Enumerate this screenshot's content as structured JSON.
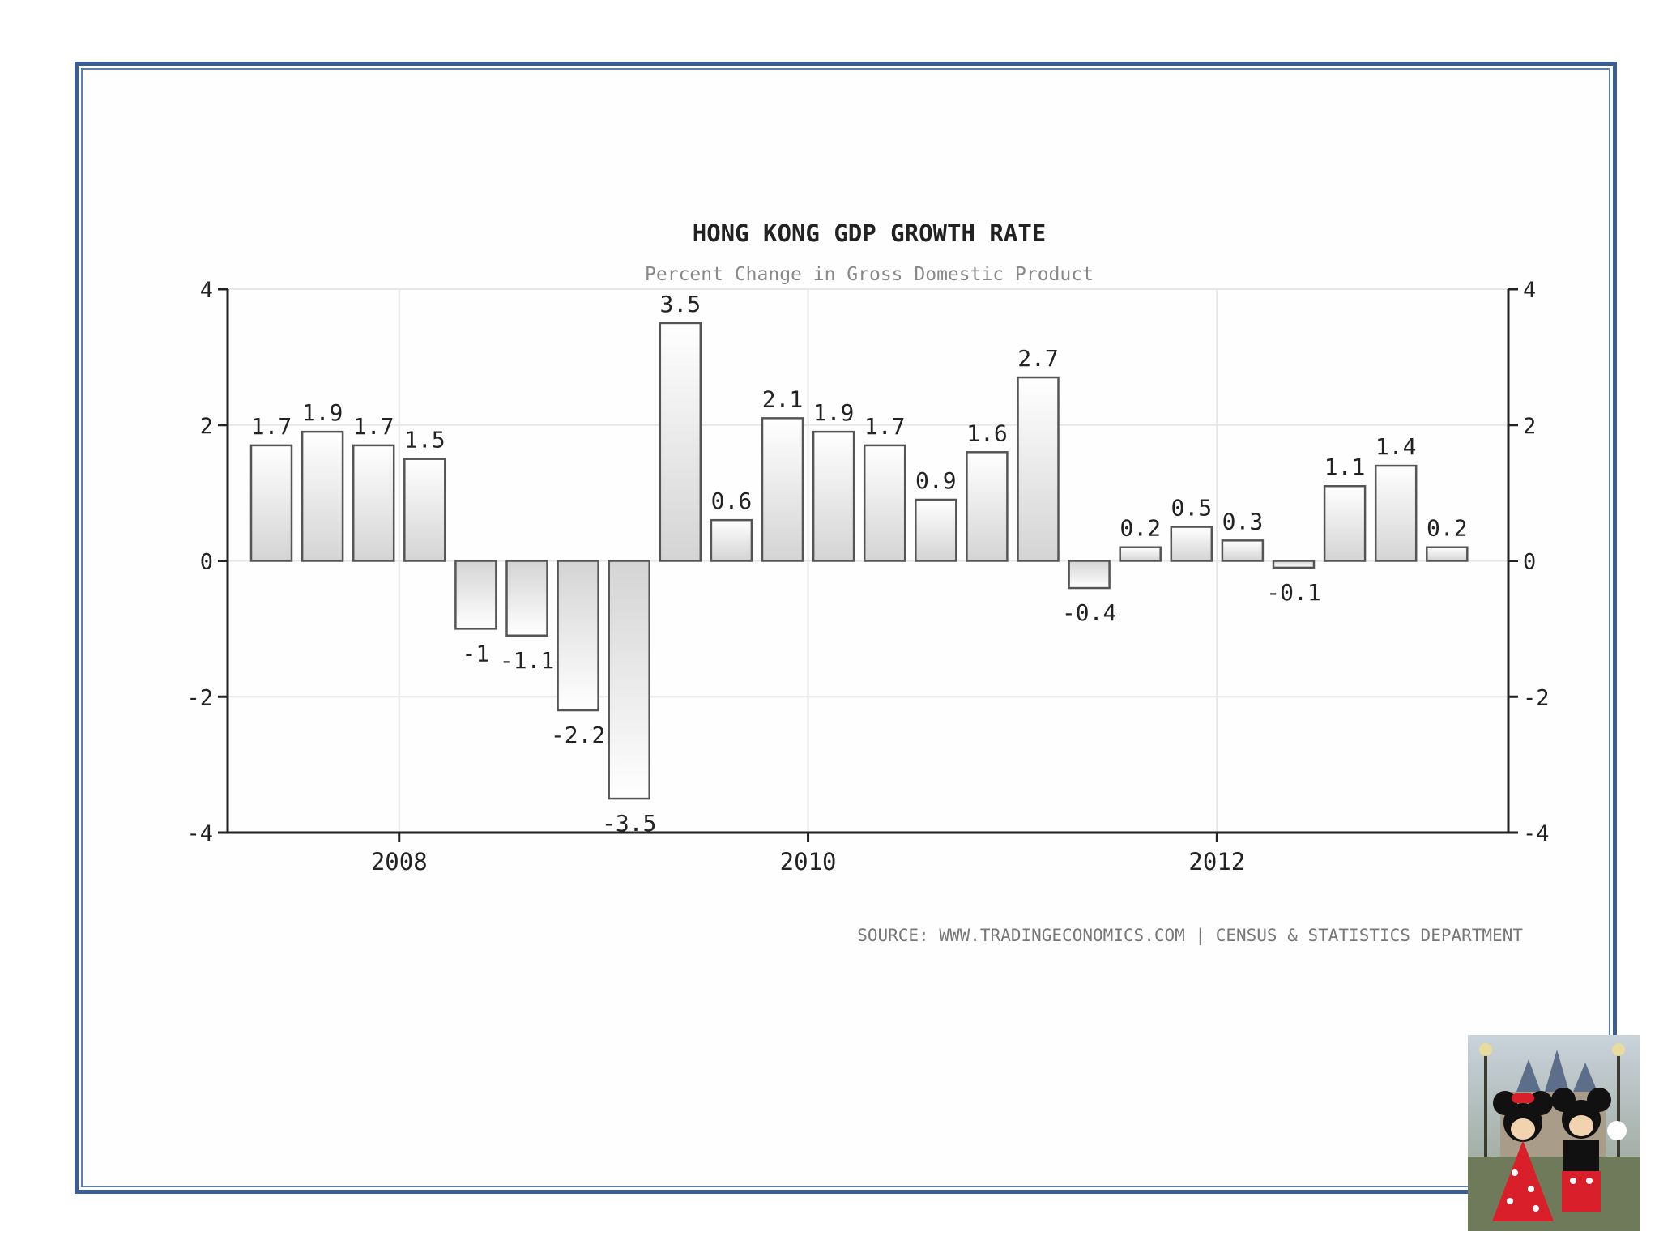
{
  "chart_data": {
    "type": "bar",
    "title": "HONG KONG GDP GROWTH RATE",
    "subtitle": "Percent Change in Gross Domestic Product",
    "source": "SOURCE:  WWW.TRADINGECONOMICS.COM  |  CENSUS & STATISTICS DEPARTMENT",
    "ylim": [
      -4,
      4
    ],
    "yticks": [
      -4,
      -2,
      0,
      2,
      4
    ],
    "ytick_labels": [
      "-4",
      "-2",
      "0",
      "2",
      "4"
    ],
    "xtick_labels": [
      "2008",
      "2010",
      "2012"
    ],
    "xtick_after_bar": [
      2,
      10,
      18
    ],
    "values": [
      1.7,
      1.9,
      1.7,
      1.5,
      -1,
      -1.1,
      -2.2,
      -3.5,
      3.5,
      0.6,
      2.1,
      1.9,
      1.7,
      0.9,
      1.6,
      2.7,
      -0.4,
      0.2,
      0.5,
      0.3,
      -0.1,
      1.1,
      1.4,
      0.2
    ],
    "value_labels": [
      "1.7",
      "1.9",
      "1.7",
      "1.5",
      "-1",
      "-1.1",
      "-2.2",
      "-3.5",
      "3.5",
      "0.6",
      "2.1",
      "1.9",
      "1.7",
      "0.9",
      "1.6",
      "2.7",
      "-0.4",
      "0.2",
      "0.5",
      "0.3",
      "-0.1",
      "1.1",
      "1.4",
      "0.2"
    ],
    "grid": true
  },
  "colors": {
    "frame": "#3b5f92",
    "bar_fill_top": "#ffffff",
    "bar_fill_bottom": "#d4d4d4",
    "bar_stroke": "#555555",
    "axis": "#222222",
    "grid": "#e6e6e6",
    "title": "#222222",
    "subtitle": "#888888",
    "source": "#777777"
  }
}
